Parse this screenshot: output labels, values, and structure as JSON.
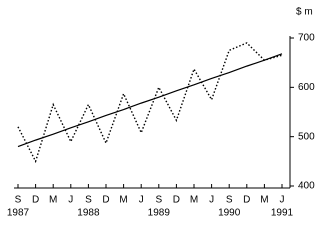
{
  "chart_data": {
    "type": "line",
    "y_label": "$ m",
    "categories": [
      "S",
      "D",
      "M",
      "J",
      "S",
      "D",
      "M",
      "J",
      "S",
      "D",
      "M",
      "J",
      "S",
      "D",
      "M",
      "J"
    ],
    "category_years": [
      "1987",
      null,
      null,
      null,
      "1988",
      null,
      null,
      null,
      "1989",
      null,
      null,
      null,
      "1990",
      null,
      null,
      "1991"
    ],
    "series": [
      {
        "color": "#000000",
        "style": "dotted",
        "values": [
          520,
          450,
          565,
          490,
          565,
          487,
          587,
          508,
          600,
          533,
          637,
          575,
          675,
          690,
          655,
          665
        ]
      },
      {
        "color": "#000000",
        "style": "solid",
        "values": [
          480,
          493,
          505,
          518,
          530,
          543,
          555,
          568,
          580,
          593,
          605,
          618,
          630,
          643,
          655,
          668
        ]
      }
    ],
    "ylim": [
      400,
      700
    ],
    "yticks": [
      400,
      500,
      600,
      700
    ],
    "y_axis_side": "right"
  }
}
